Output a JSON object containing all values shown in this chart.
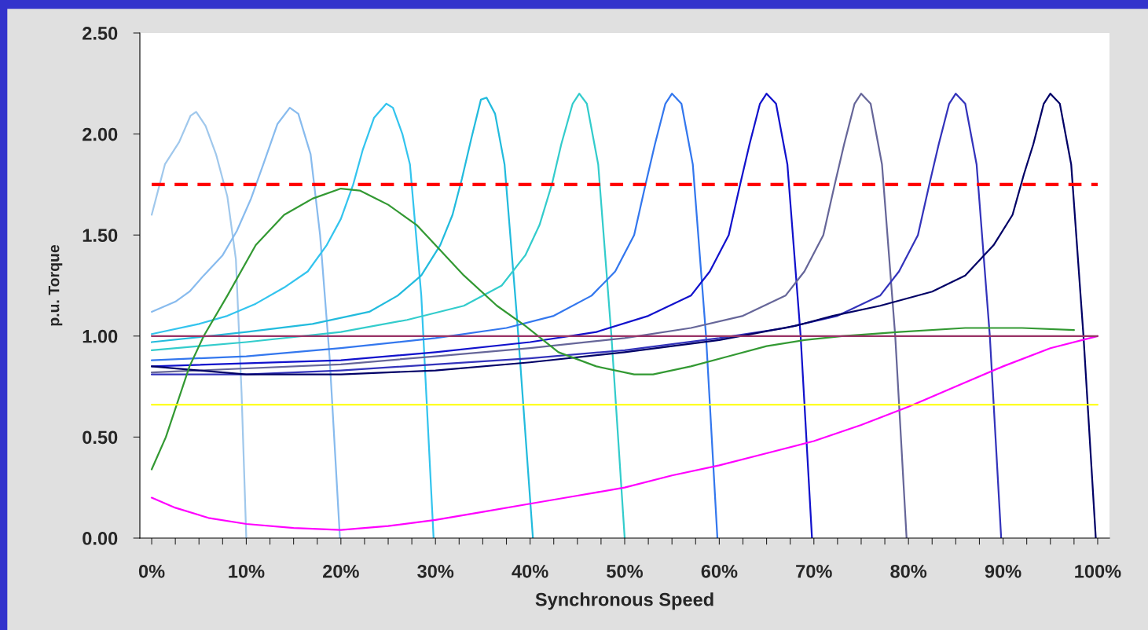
{
  "chart_data": {
    "type": "line",
    "xlabel": "Synchronous Speed",
    "ylabel": "p.u. Torque",
    "xlim": [
      -1.25,
      101.25
    ],
    "ylim": [
      0,
      2.5
    ],
    "xticks": [
      {
        "value": 0,
        "label": "0%"
      },
      {
        "value": 2.5,
        "label": null
      },
      {
        "value": 5,
        "label": null
      },
      {
        "value": 7.5,
        "label": null
      },
      {
        "value": 10,
        "label": "10%"
      },
      {
        "value": 12.5,
        "label": null
      },
      {
        "value": 15,
        "label": null
      },
      {
        "value": 17.5,
        "label": null
      },
      {
        "value": 20,
        "label": "20%"
      },
      {
        "value": 22.5,
        "label": null
      },
      {
        "value": 25,
        "label": null
      },
      {
        "value": 27.5,
        "label": null
      },
      {
        "value": 30,
        "label": "30%"
      },
      {
        "value": 32.5,
        "label": null
      },
      {
        "value": 35,
        "label": null
      },
      {
        "value": 37.5,
        "label": null
      },
      {
        "value": 40,
        "label": "40%"
      },
      {
        "value": 42.5,
        "label": null
      },
      {
        "value": 45,
        "label": null
      },
      {
        "value": 47.5,
        "label": null
      },
      {
        "value": 50,
        "label": "50%"
      },
      {
        "value": 52.5,
        "label": null
      },
      {
        "value": 55,
        "label": null
      },
      {
        "value": 57.5,
        "label": null
      },
      {
        "value": 60,
        "label": "60%"
      },
      {
        "value": 62.5,
        "label": null
      },
      {
        "value": 65,
        "label": null
      },
      {
        "value": 67.5,
        "label": null
      },
      {
        "value": 70,
        "label": "70%"
      },
      {
        "value": 72.5,
        "label": null
      },
      {
        "value": 75,
        "label": null
      },
      {
        "value": 77.5,
        "label": null
      },
      {
        "value": 80,
        "label": "80%"
      },
      {
        "value": 82.5,
        "label": null
      },
      {
        "value": 85,
        "label": null
      },
      {
        "value": 87.5,
        "label": null
      },
      {
        "value": 90,
        "label": "90%"
      },
      {
        "value": 92.5,
        "label": null
      },
      {
        "value": 95,
        "label": null
      },
      {
        "value": 97.5,
        "label": null
      },
      {
        "value": 100,
        "label": "100%"
      }
    ],
    "yticks": [
      {
        "value": 0,
        "label": "0.00"
      },
      {
        "value": 0.5,
        "label": "0.50"
      },
      {
        "value": 1,
        "label": "1.00"
      },
      {
        "value": 1.5,
        "label": "1.50"
      },
      {
        "value": 2,
        "label": "2.00"
      },
      {
        "value": 2.5,
        "label": "2.50"
      }
    ],
    "grid": false,
    "legend": false,
    "marker": "none",
    "series": [
      {
        "color": "#a0c8ec",
        "x": [
          0,
          1.4,
          2.9,
          4.1,
          4.7,
          5.7,
          6.8,
          8,
          8.9,
          9.5,
          10
        ],
        "values": [
          1.6,
          1.85,
          1.96,
          2.09,
          2.11,
          2.04,
          1.9,
          1.69,
          1.38,
          0.72,
          0
        ]
      },
      {
        "color": "#88bbee",
        "x": [
          0,
          2.5,
          4,
          5.5,
          7.5,
          9,
          10.5,
          11.8,
          13.3,
          14.6,
          15.5,
          16.8,
          17.8,
          18.8,
          19.9
        ],
        "values": [
          1.12,
          1.17,
          1.22,
          1.3,
          1.4,
          1.52,
          1.68,
          1.85,
          2.05,
          2.13,
          2.1,
          1.9,
          1.5,
          0.9,
          0
        ]
      },
      {
        "color": "#33c4ee",
        "x": [
          0,
          5,
          8,
          11,
          14,
          16.5,
          18.5,
          20,
          21.3,
          22.3,
          23.5,
          24.8,
          25.5,
          26.5,
          27.3,
          28.5,
          29.8
        ],
        "values": [
          1.01,
          1.06,
          1.1,
          1.16,
          1.24,
          1.32,
          1.45,
          1.58,
          1.75,
          1.92,
          2.08,
          2.15,
          2.13,
          2.0,
          1.85,
          1.2,
          0
        ]
      },
      {
        "color": "#22bbdd",
        "x": [
          0,
          10,
          17,
          23,
          26,
          28.5,
          30.5,
          31.8,
          32.8,
          33.8,
          34.8,
          35.4,
          36.3,
          37.3,
          38.6,
          40.3
        ],
        "values": [
          0.97,
          1.02,
          1.06,
          1.12,
          1.2,
          1.3,
          1.45,
          1.6,
          1.78,
          1.98,
          2.17,
          2.18,
          2.1,
          1.85,
          1.1,
          0
        ]
      },
      {
        "color": "#33cccc",
        "x": [
          0,
          10,
          20,
          27,
          33,
          37,
          39.5,
          41,
          42.3,
          43.3,
          44.5,
          45.2,
          46,
          47.2,
          48.6,
          50
        ],
        "values": [
          0.93,
          0.97,
          1.02,
          1.08,
          1.15,
          1.25,
          1.4,
          1.55,
          1.75,
          1.95,
          2.15,
          2.2,
          2.15,
          1.85,
          1.0,
          0
        ]
      },
      {
        "color": "#3377ee",
        "x": [
          0,
          10,
          20,
          30,
          37.5,
          42.5,
          46.5,
          49,
          51,
          52.2,
          53.2,
          54.3,
          55,
          56,
          57.2,
          58.6,
          59.8
        ],
        "values": [
          0.88,
          0.9,
          0.94,
          0.99,
          1.04,
          1.1,
          1.2,
          1.32,
          1.5,
          1.75,
          1.95,
          2.15,
          2.2,
          2.15,
          1.85,
          1.0,
          0
        ]
      },
      {
        "color": "#1111cc",
        "x": [
          0,
          20,
          30,
          40,
          47,
          52.5,
          57,
          59,
          61,
          62.2,
          63.2,
          64.3,
          65,
          66,
          67.2,
          68.6,
          69.8
        ],
        "values": [
          0.85,
          0.88,
          0.92,
          0.97,
          1.02,
          1.1,
          1.2,
          1.32,
          1.5,
          1.75,
          1.95,
          2.15,
          2.2,
          2.15,
          1.85,
          1.0,
          0
        ]
      },
      {
        "color": "#666699",
        "x": [
          0,
          20,
          30,
          40,
          50,
          57,
          62.5,
          67,
          69,
          71,
          72.2,
          73.2,
          74.3,
          75,
          76,
          77.2,
          78.6,
          79.8
        ],
        "values": [
          0.82,
          0.86,
          0.9,
          0.94,
          0.99,
          1.04,
          1.1,
          1.2,
          1.32,
          1.5,
          1.75,
          1.95,
          2.15,
          2.2,
          2.15,
          1.85,
          1.0,
          0
        ]
      },
      {
        "color": "#3333bb",
        "x": [
          0,
          10,
          20,
          30,
          40,
          50,
          60,
          67,
          72.5,
          77,
          79,
          81,
          82.2,
          83.2,
          84.3,
          85,
          86,
          87.2,
          88.6,
          89.8
        ],
        "values": [
          0.81,
          0.81,
          0.83,
          0.86,
          0.89,
          0.93,
          0.99,
          1.04,
          1.1,
          1.2,
          1.32,
          1.5,
          1.75,
          1.95,
          2.15,
          2.2,
          2.15,
          1.85,
          1.0,
          0
        ]
      },
      {
        "color": "#000066",
        "x": [
          0,
          5,
          10,
          20,
          30,
          40,
          50,
          60,
          68,
          72,
          77,
          82.5,
          86,
          89,
          91,
          92.2,
          93.2,
          94.3,
          95,
          96,
          97.2,
          98.5,
          99.8
        ],
        "values": [
          0.85,
          0.83,
          0.81,
          0.81,
          0.83,
          0.87,
          0.92,
          0.98,
          1.05,
          1.1,
          1.15,
          1.22,
          1.3,
          1.45,
          1.6,
          1.8,
          1.95,
          2.15,
          2.2,
          2.15,
          1.85,
          1.0,
          0
        ]
      },
      {
        "color": "#339933",
        "x": [
          0,
          1.5,
          4,
          5.5,
          8,
          11,
          14,
          17,
          20,
          22,
          25,
          28,
          30,
          33,
          36.5,
          39.5,
          43,
          47,
          51,
          53,
          57,
          61,
          65,
          69,
          73,
          79,
          86,
          92,
          97.5
        ],
        "values": [
          0.34,
          0.5,
          0.85,
          1.0,
          1.2,
          1.45,
          1.6,
          1.68,
          1.73,
          1.72,
          1.65,
          1.55,
          1.45,
          1.3,
          1.15,
          1.05,
          0.92,
          0.85,
          0.81,
          0.81,
          0.85,
          0.9,
          0.95,
          0.98,
          1.0,
          1.02,
          1.04,
          1.04,
          1.03
        ]
      },
      {
        "color": "#ff00ff",
        "x": [
          0,
          2.5,
          6,
          10,
          15,
          20,
          25,
          30,
          35,
          40,
          45,
          50,
          55,
          60,
          65,
          70,
          75,
          80,
          85,
          90,
          95,
          100
        ],
        "values": [
          0.2,
          0.15,
          0.1,
          0.07,
          0.05,
          0.04,
          0.06,
          0.09,
          0.13,
          0.17,
          0.21,
          0.25,
          0.31,
          0.36,
          0.42,
          0.48,
          0.56,
          0.65,
          0.75,
          0.85,
          0.94,
          1.0
        ]
      },
      {
        "color": "#ffff00",
        "x": [
          0,
          100
        ],
        "values": [
          0.66,
          0.66
        ]
      },
      {
        "color": "#993366",
        "x": [
          0,
          100
        ],
        "values": [
          1.0,
          1.0
        ]
      },
      {
        "color": "#ff0000",
        "line_style": "dashed",
        "x": [
          0,
          100
        ],
        "values": [
          1.75,
          1.75
        ]
      }
    ]
  }
}
